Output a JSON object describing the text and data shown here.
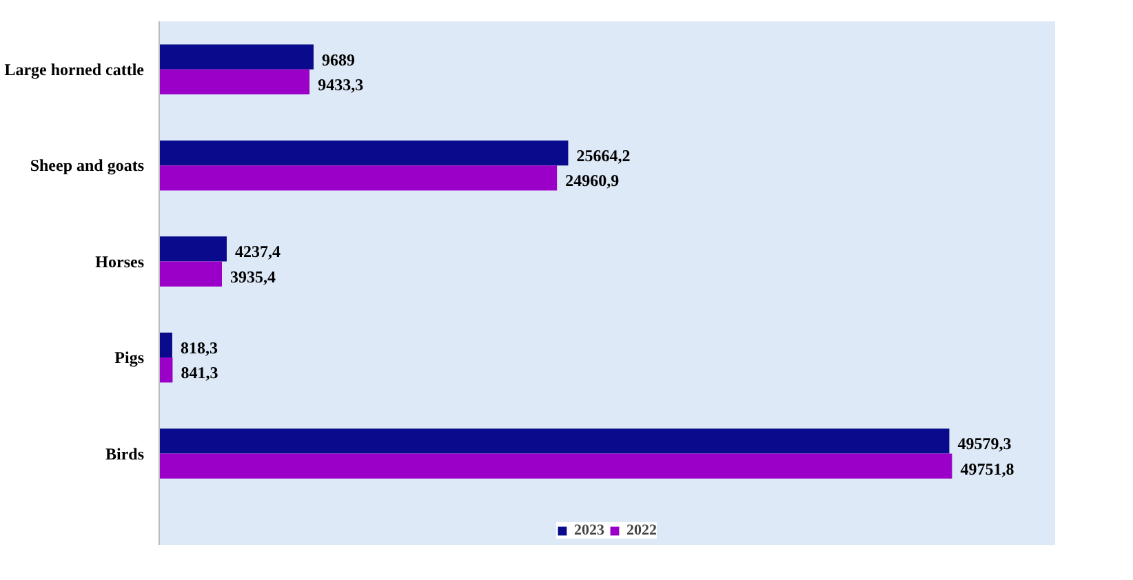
{
  "chart_data": {
    "type": "bar",
    "orientation": "horizontal",
    "categories": [
      "Large horned cattle",
      "Sheep and goats",
      "Horses",
      "Pigs",
      "Birds"
    ],
    "series": [
      {
        "name": "2023",
        "color": "#0a0a8c",
        "values": [
          9689,
          25664.2,
          4237.4,
          818.3,
          49579.3
        ],
        "value_labels": [
          "9689",
          "25664,2",
          "4237,4",
          "818,3",
          "49579,3"
        ]
      },
      {
        "name": "2022",
        "color": "#9b00c8",
        "values": [
          9433.3,
          24960.9,
          3935.4,
          841.3,
          49751.8
        ],
        "value_labels": [
          "9433,3",
          "24960,9",
          "3935,4",
          "841,3",
          "49751,8"
        ]
      }
    ],
    "legend": "bottom"
  }
}
